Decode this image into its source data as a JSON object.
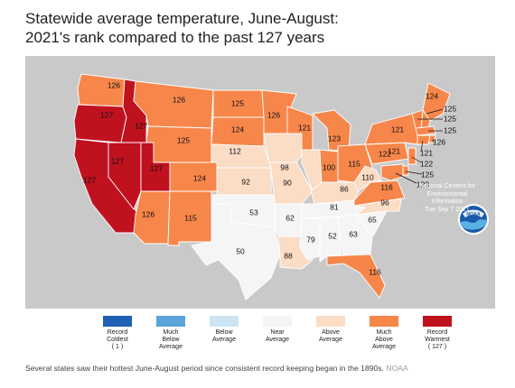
{
  "title": {
    "line1": "Statewide average temperature, June-August:",
    "line2": "2021's rank compared to the past 127 years"
  },
  "colors": {
    "record_coldest": "#1f5fb4",
    "much_below": "#5aa4d9",
    "below": "#cde4f2",
    "near": "#f5f5f5",
    "above": "#fbdcc5",
    "much_above": "#f7864a",
    "record_warmest": "#c0111f",
    "background_land": "#c9c9c9"
  },
  "states": [
    {
      "id": "WA",
      "rank": "126",
      "category": "much_above"
    },
    {
      "id": "OR",
      "rank": "127",
      "category": "record_warmest"
    },
    {
      "id": "CA",
      "rank": "127",
      "category": "record_warmest"
    },
    {
      "id": "ID",
      "rank": "127",
      "category": "record_warmest"
    },
    {
      "id": "NV",
      "rank": "127",
      "category": "record_warmest"
    },
    {
      "id": "UT",
      "rank": "127",
      "category": "record_warmest"
    },
    {
      "id": "MT",
      "rank": "126",
      "category": "much_above"
    },
    {
      "id": "WY",
      "rank": "125",
      "category": "much_above"
    },
    {
      "id": "AZ",
      "rank": "126",
      "category": "much_above"
    },
    {
      "id": "CO",
      "rank": "124",
      "category": "much_above"
    },
    {
      "id": "NM",
      "rank": "115",
      "category": "much_above"
    },
    {
      "id": "ND",
      "rank": "125",
      "category": "much_above"
    },
    {
      "id": "SD",
      "rank": "124",
      "category": "much_above"
    },
    {
      "id": "NE",
      "rank": "112",
      "category": "above"
    },
    {
      "id": "KS",
      "rank": "92",
      "category": "above"
    },
    {
      "id": "OK",
      "rank": "53",
      "category": "near"
    },
    {
      "id": "TX",
      "rank": "50",
      "category": "near"
    },
    {
      "id": "MN",
      "rank": "126",
      "category": "much_above"
    },
    {
      "id": "IA",
      "rank": "98",
      "category": "above"
    },
    {
      "id": "MO",
      "rank": "90",
      "category": "above"
    },
    {
      "id": "AR",
      "rank": "62",
      "category": "near"
    },
    {
      "id": "LA",
      "rank": "88",
      "category": "above"
    },
    {
      "id": "WI",
      "rank": "121",
      "category": "much_above"
    },
    {
      "id": "IL",
      "rank": "100",
      "category": "above"
    },
    {
      "id": "MI",
      "rank": "123",
      "category": "much_above"
    },
    {
      "id": "IN",
      "rank": "115",
      "category": "much_above"
    },
    {
      "id": "OH",
      "rank": "122",
      "category": "much_above"
    },
    {
      "id": "KY",
      "rank": "86",
      "category": "above"
    },
    {
      "id": "TN",
      "rank": "81",
      "category": "near"
    },
    {
      "id": "MS",
      "rank": "79",
      "category": "near"
    },
    {
      "id": "AL",
      "rank": "52",
      "category": "near"
    },
    {
      "id": "GA",
      "rank": "63",
      "category": "near"
    },
    {
      "id": "FL",
      "rank": "116",
      "category": "much_above"
    },
    {
      "id": "SC",
      "rank": "65",
      "category": "near"
    },
    {
      "id": "NC",
      "rank": "96",
      "category": "above"
    },
    {
      "id": "VA",
      "rank": "116",
      "category": "much_above"
    },
    {
      "id": "WV",
      "rank": "110",
      "category": "above"
    },
    {
      "id": "PA",
      "rank": "121",
      "category": "much_above"
    },
    {
      "id": "NY",
      "rank": "121",
      "category": "much_above"
    },
    {
      "id": "ME",
      "rank": "124",
      "category": "much_above"
    },
    {
      "id": "NH",
      "rank": "125",
      "category": "much_above"
    },
    {
      "id": "VT",
      "rank": "125",
      "category": "much_above"
    },
    {
      "id": "MA",
      "rank": "125",
      "category": "much_above"
    },
    {
      "id": "RI",
      "rank": "126",
      "category": "much_above"
    },
    {
      "id": "CT",
      "rank": "121",
      "category": "much_above"
    },
    {
      "id": "NJ",
      "rank": "122",
      "category": "much_above"
    },
    {
      "id": "DE",
      "rank": "125",
      "category": "much_above"
    },
    {
      "id": "MD",
      "rank": "123",
      "category": "much_above"
    }
  ],
  "legend": [
    {
      "key": "record_coldest",
      "lines": [
        "Record",
        "Coldest",
        "( 1 )"
      ]
    },
    {
      "key": "much_below",
      "lines": [
        "Much",
        "Below",
        "Average"
      ]
    },
    {
      "key": "below",
      "lines": [
        "Below",
        "Average"
      ]
    },
    {
      "key": "near",
      "lines": [
        "Near",
        "Average"
      ]
    },
    {
      "key": "above",
      "lines": [
        "Above",
        "Average"
      ]
    },
    {
      "key": "much_above",
      "lines": [
        "Much",
        "Above",
        "Average"
      ]
    },
    {
      "key": "record_warmest",
      "lines": [
        "Record",
        "Warmest",
        "( 127 )"
      ]
    }
  ],
  "noaa": {
    "logo_text": "NOAA",
    "line1": "National Centers for",
    "line2": "Environmental",
    "line3": "Information",
    "line4": "Tue Sep  7 2021"
  },
  "caption": {
    "text": "Several states saw their hottest June-August period since consistent record keeping began in the 1890s.",
    "credit": "NOAA"
  }
}
